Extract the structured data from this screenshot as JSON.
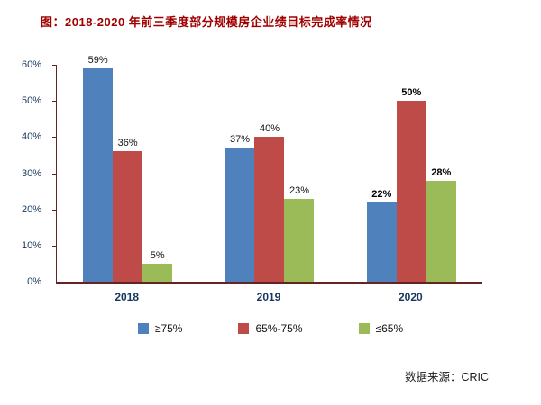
{
  "source": {
    "text": "数据来源：CRIC"
  },
  "colors": {
    "title": "#A00000",
    "axis": "#632423",
    "axis_labels": "#17375E",
    "series_blue": "#4F81BD",
    "series_red": "#BE4B48",
    "series_green": "#9BBB59"
  },
  "chart_data": {
    "type": "bar",
    "title": "图：2018-2020 年前三季度部分规模房企业绩目标完成率情况",
    "categories": [
      "2018",
      "2019",
      "2020"
    ],
    "series": [
      {
        "name": "≥75%",
        "color": "#4F81BD",
        "values": [
          59,
          37,
          22
        ]
      },
      {
        "name": "65%-75%",
        "color": "#BE4B48",
        "values": [
          36,
          40,
          50
        ]
      },
      {
        "name": "≤65%",
        "color": "#9BBB59",
        "values": [
          5,
          23,
          28
        ]
      }
    ],
    "data_labels": [
      [
        "59%",
        "36%",
        "5%"
      ],
      [
        "37%",
        "40%",
        "23%"
      ],
      [
        "22%",
        "50%",
        "28%"
      ]
    ],
    "bold_value_label_groups": [
      false,
      false,
      true
    ],
    "xlabel": "",
    "ylabel": "",
    "ylim": [
      0,
      60
    ],
    "ytick_step": 10,
    "ytick_labels": [
      "0%",
      "10%",
      "20%",
      "30%",
      "40%",
      "50%",
      "60%"
    ],
    "grid": false,
    "legend_position": "bottom"
  }
}
